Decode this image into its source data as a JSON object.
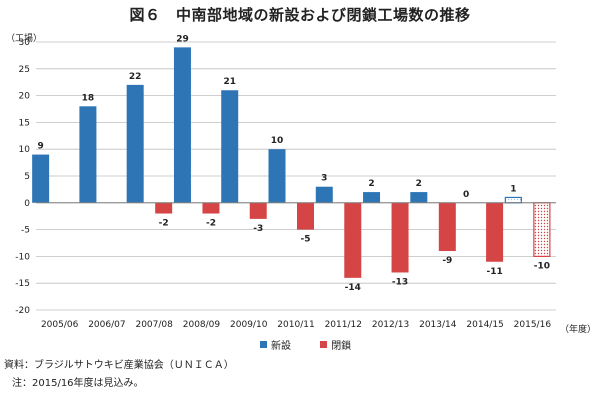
{
  "title": "図６　中南部地域の新設および閉鎖工場数の推移",
  "chart_data": {
    "type": "bar",
    "title": "図６　中南部地域の新設および閉鎖工場数の推移",
    "ylabel": "（工場）",
    "xlabel": "（年度）",
    "ylim": [
      -20,
      30
    ],
    "yticks": [
      30,
      25,
      20,
      15,
      10,
      5,
      0,
      -5,
      -10,
      -15,
      -20
    ],
    "grid": true,
    "legend_position": "bottom",
    "categories": [
      "2005/06",
      "2006/07",
      "2007/08",
      "2008/09",
      "2009/10",
      "2010/11",
      "2011/12",
      "2012/13",
      "2013/14",
      "2014/15",
      "2015/16"
    ],
    "series": [
      {
        "name": "新設",
        "color": "#2e75b6",
        "values": [
          9,
          18,
          22,
          29,
          21,
          10,
          3,
          2,
          2,
          0,
          1
        ],
        "labels": [
          "9",
          "18",
          "22",
          "29",
          "21",
          "10",
          "3",
          "2",
          "2",
          "0",
          "1"
        ]
      },
      {
        "name": "閉鎖",
        "color": "#d64545",
        "values": [
          null,
          null,
          -2,
          -2,
          -3,
          -5,
          -14,
          -13,
          -9,
          -11,
          -10
        ],
        "labels": [
          "",
          "",
          "-2",
          "-2",
          "-3",
          "-5",
          "-14",
          "-13",
          "-9",
          "-11",
          "-10"
        ]
      }
    ],
    "estimated_last_category": true
  },
  "source": "資料：ブラジルサトウキビ産業協会（ＵＮＩＣＡ）",
  "note": "注：2015/16年度は見込み。"
}
